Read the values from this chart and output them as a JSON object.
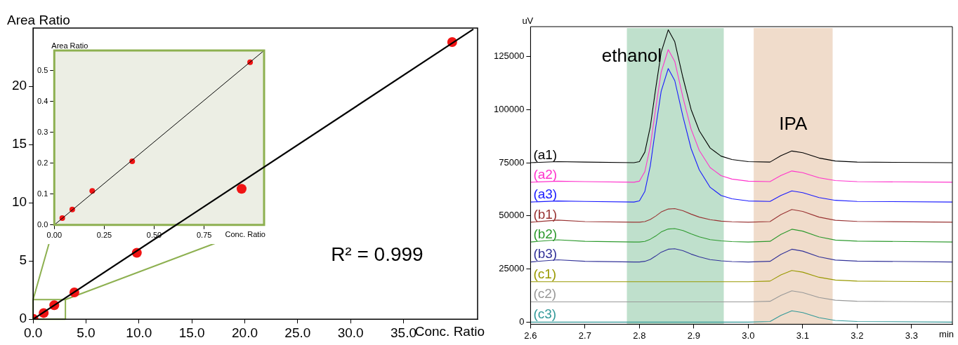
{
  "chart_data": [
    {
      "type": "scatter",
      "xlabel": "Conc. Ratio",
      "ylabel": "Area Ratio",
      "xlim": [
        0,
        42
      ],
      "ylim": [
        0,
        25
      ],
      "xticks": [
        {
          "value": 0,
          "label": "0.0"
        },
        {
          "value": 5,
          "label": "5.0"
        },
        {
          "value": 10,
          "label": "10.0"
        },
        {
          "value": 15,
          "label": "15.0"
        },
        {
          "value": 20,
          "label": "20.0"
        },
        {
          "value": 25,
          "label": "25.0"
        },
        {
          "value": 30,
          "label": "30.0"
        },
        {
          "value": 35,
          "label": "35.0"
        }
      ],
      "yticks": [
        0,
        5,
        10,
        15,
        20
      ],
      "grid": false,
      "legend": false,
      "annotations": [
        "R² = 0.999"
      ],
      "series": [
        {
          "type": "line",
          "color": "#000000",
          "marker": "none",
          "x": [
            0,
            41.6
          ],
          "values": [
            0,
            24.9
          ]
        },
        {
          "type": "scatter",
          "color": "#f01414",
          "marker": "circle",
          "x": [
            0.04,
            1.0,
            2.0,
            3.9,
            9.8,
            19.7,
            39.6
          ],
          "values": [
            0.02,
            0.53,
            1.2,
            2.3,
            5.7,
            11.2,
            23.8
          ]
        }
      ]
    },
    {
      "type": "scatter",
      "xlabel": "Conc. Ratio",
      "ylabel": "Area Ratio",
      "xlim": [
        0,
        1.05
      ],
      "ylim": [
        0,
        0.565
      ],
      "xticks": [
        {
          "value": 0,
          "label": "0.00"
        },
        0.25,
        {
          "value": 0.5,
          "label": "0.50"
        },
        0.75
      ],
      "yticks": [
        {
          "value": 0,
          "label": "0.0"
        },
        0.1,
        0.2,
        0.3,
        0.4,
        0.5
      ],
      "grid": false,
      "legend": false,
      "series": [
        {
          "type": "line",
          "color": "#000000",
          "marker": "none",
          "x": [
            0,
            1.05
          ],
          "values": [
            0,
            0.565
          ]
        },
        {
          "type": "scatter",
          "color": "#f01414",
          "marker": "circle",
          "x": [
            0.04,
            0.09,
            0.19,
            0.39,
            0.98
          ],
          "values": [
            0.022,
            0.05,
            0.11,
            0.206,
            0.527
          ]
        }
      ]
    },
    {
      "type": "line",
      "xlabel": "min",
      "ylabel": "uV",
      "xlim": [
        2.6,
        3.375
      ],
      "ylim": [
        -1000,
        139000
      ],
      "xticks": [
        2.6,
        2.7,
        2.8,
        2.9,
        {
          "value": 3,
          "label": "3.0"
        },
        3.1,
        3.2,
        3.3
      ],
      "yticks": [
        0,
        25000,
        50000,
        75000,
        100000,
        125000
      ],
      "grid": false,
      "legend": false,
      "marker": "none",
      "line_style": "solid",
      "bands": [
        {
          "axis": "x",
          "from": 2.777,
          "to": 2.955,
          "label": "ethanol",
          "color": "#bfe0cc"
        },
        {
          "axis": "x",
          "from": 3.01,
          "to": 3.155,
          "label": "IPA",
          "color": "#f0dccb"
        }
      ],
      "x": [
        2.6,
        2.65,
        2.7,
        2.79,
        2.8,
        2.81,
        2.82,
        2.83,
        2.84,
        2.853,
        2.865,
        2.88,
        2.895,
        2.91,
        2.93,
        2.95,
        2.97,
        3.0,
        3.04,
        3.06,
        3.08,
        3.1,
        3.13,
        3.16,
        3.2,
        3.375
      ],
      "series": [
        {
          "name": "(a1)",
          "color": "#000000",
          "values": [
            75000,
            75500,
            75300,
            75000,
            75500,
            80000,
            91900,
            110000,
            126900,
            137500,
            131900,
            115000,
            100000,
            90000,
            81900,
            78100,
            76500,
            75500,
            75300,
            78300,
            80500,
            79700,
            77200,
            75800,
            75300,
            75000
          ]
        },
        {
          "name": "(a2)",
          "color": "#ff33cc",
          "values": [
            65800,
            66300,
            66100,
            65800,
            66300,
            70800,
            82600,
            100700,
            117600,
            128200,
            122600,
            105700,
            90800,
            80800,
            72700,
            68900,
            67300,
            66300,
            66100,
            69000,
            71100,
            70300,
            67900,
            66600,
            66100,
            65800
          ]
        },
        {
          "name": "(a3)",
          "color": "#1a1aff",
          "values": [
            56500,
            57000,
            56800,
            56500,
            57000,
            61500,
            73500,
            91700,
            108600,
            119300,
            113600,
            96700,
            81600,
            71600,
            63400,
            59600,
            58000,
            57000,
            56800,
            59600,
            61700,
            60900,
            58600,
            57300,
            56800,
            56500
          ]
        },
        {
          "name": "(b1)",
          "color": "#993333",
          "values": [
            47000,
            48000,
            47300,
            47000,
            47000,
            47300,
            48300,
            49900,
            51800,
            53200,
            53400,
            52400,
            50800,
            49400,
            48200,
            47500,
            47200,
            47000,
            47300,
            50600,
            53000,
            52100,
            49400,
            47900,
            47400,
            47000
          ]
        },
        {
          "name": "(b2)",
          "color": "#2e9a2e",
          "values": [
            37700,
            38700,
            38000,
            37700,
            37700,
            38000,
            39000,
            40500,
            42400,
            43800,
            44000,
            43100,
            41500,
            40100,
            38800,
            38200,
            37900,
            37700,
            38000,
            41300,
            43700,
            42800,
            40100,
            38600,
            38100,
            37700
          ]
        },
        {
          "name": "(b3)",
          "color": "#333399",
          "values": [
            28300,
            29300,
            28600,
            28300,
            28300,
            28600,
            29500,
            31100,
            32900,
            34300,
            34500,
            33600,
            32000,
            30700,
            29400,
            28800,
            28500,
            28300,
            28600,
            31900,
            34300,
            33400,
            30700,
            29200,
            28700,
            28300
          ]
        },
        {
          "name": "(c1)",
          "color": "#999900",
          "values": [
            19000,
            19000,
            19000,
            19000,
            19000,
            19000,
            19000,
            19000,
            19000,
            19000,
            19000,
            19000,
            19000,
            19000,
            19000,
            19000,
            19000,
            19000,
            19300,
            22200,
            24300,
            23500,
            21100,
            19800,
            19300,
            19000
          ]
        },
        {
          "name": "(c2)",
          "color": "#999999",
          "values": [
            9500,
            9500,
            9500,
            9500,
            9500,
            9500,
            9500,
            9500,
            9500,
            9500,
            9500,
            9500,
            9500,
            9500,
            9500,
            9500,
            9500,
            9500,
            9800,
            12600,
            14700,
            13900,
            11600,
            10300,
            9800,
            9500
          ]
        },
        {
          "name": "(c3)",
          "color": "#339999",
          "values": [
            0,
            0,
            0,
            0,
            0,
            0,
            0,
            0,
            0,
            0,
            0,
            0,
            0,
            0,
            0,
            0,
            0,
            0,
            300,
            3200,
            5300,
            4500,
            2100,
            800,
            300,
            0
          ]
        }
      ]
    }
  ]
}
